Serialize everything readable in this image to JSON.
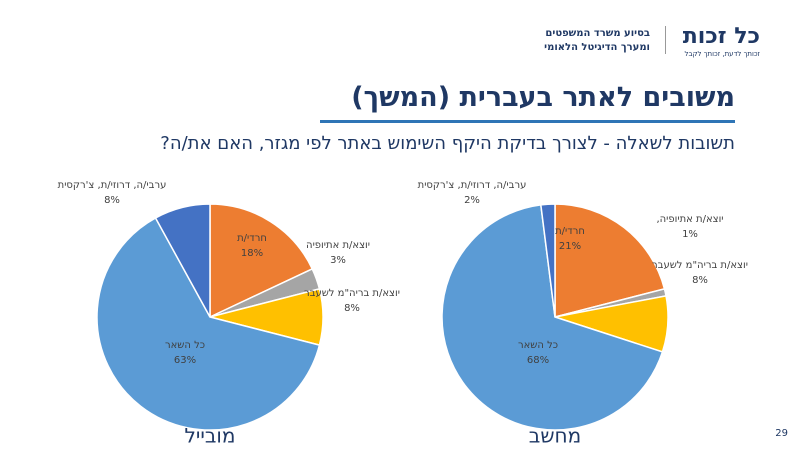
{
  "header": {
    "logo": "כל זכות",
    "tagline": "זכותך לדעת, זכותך לקבל",
    "org_line1": "בסיוע משרד המשפטים",
    "org_line2": "ומערך הדיגיטל הלאומי"
  },
  "title": "משובים לאתר בעברית (המשך)",
  "subtitle": "תשובות לשאלה - לצורך בדיקת היקף השימוש באתר לפי מגזר, האם את/ה?",
  "page_number": "29",
  "chart_data": [
    {
      "type": "pie",
      "title": "מובייל",
      "categories": [
        "חרדי/ת",
        "יוצא/ת אתיופיה",
        "יוצא/ת בריה\"מ לשעבר",
        "כל השאר",
        "ערבי/ה, דרוזי/ת, צ'רקסית"
      ],
      "values": [
        18,
        3,
        8,
        63,
        8
      ],
      "value_labels": [
        "18%",
        "3%",
        "8%",
        "63%",
        "8%"
      ],
      "colors": [
        "#ed7d31",
        "#a5a5a5",
        "#ffc000",
        "#5b9bd5",
        "#4472c4"
      ]
    },
    {
      "type": "pie",
      "title": "מחשב",
      "categories": [
        "חרדי/ת",
        "יוצא/ת אתיופיה,",
        "יוצא/ת בריה\"מ לשעבר",
        "כל השאר",
        "ערבי/ה, דרוזי/ת, צ'רקסית"
      ],
      "values": [
        21,
        1,
        8,
        68,
        2
      ],
      "value_labels": [
        "21%",
        "1%",
        "8%",
        "68%",
        "2%"
      ],
      "colors": [
        "#ed7d31",
        "#a5a5a5",
        "#ffc000",
        "#5b9bd5",
        "#4472c4"
      ]
    }
  ]
}
